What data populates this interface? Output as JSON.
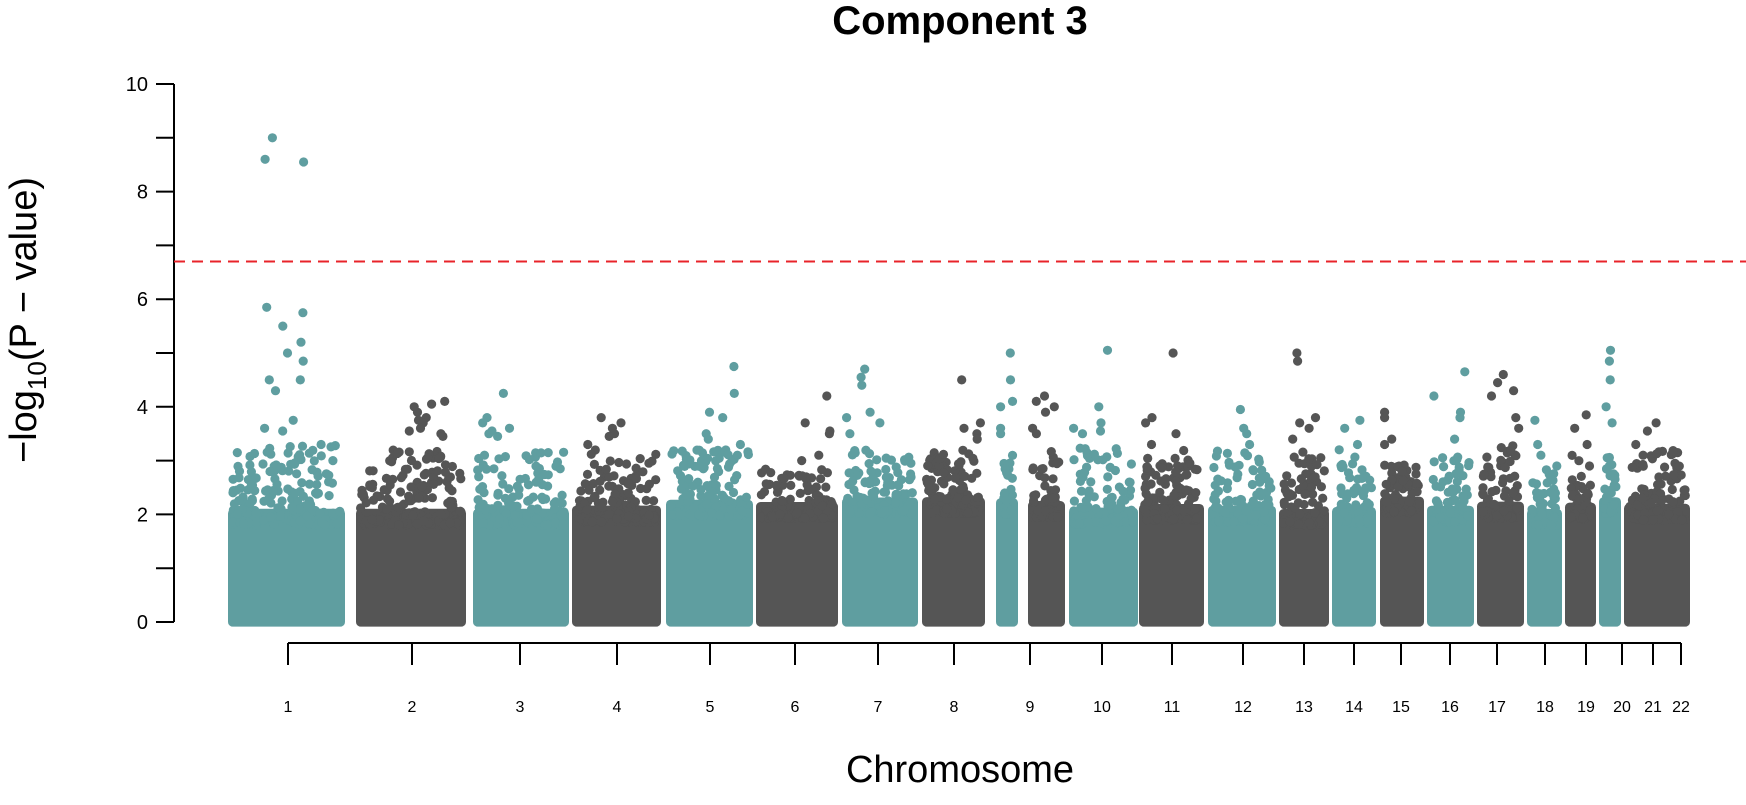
{
  "chart_data": {
    "type": "scatter",
    "subtype": "manhattan",
    "title": "Component 3",
    "xlabel": "Chromosome",
    "ylabel": {
      "prefix": "−log",
      "subscript": "10",
      "suffix": "(P − value)"
    },
    "ylim": [
      0,
      10
    ],
    "yticks": [
      "0",
      "2",
      "4",
      "6",
      "8",
      "10"
    ],
    "threshold": 6.7,
    "grid": false,
    "legend": "none",
    "colors": {
      "teal": "#5f9ea0",
      "dark": "#555555",
      "threshold": "#e8232a",
      "axis": "#000000"
    },
    "chromosomes": [
      {
        "label": "1",
        "color": "teal",
        "base_max": 3.0,
        "peaks": [
          9.0,
          8.6,
          8.55,
          5.85,
          5.75,
          5.5,
          5.2,
          5.0,
          4.85,
          4.5,
          4.3,
          3.75,
          3.6,
          3.55,
          4.5
        ]
      },
      {
        "label": "2",
        "color": "dark",
        "base_max": 2.9,
        "peaks": [
          4.1,
          4.05,
          4.0,
          3.9,
          3.8,
          3.75,
          3.7,
          3.6,
          3.55,
          3.5,
          3.45
        ]
      },
      {
        "label": "3",
        "color": "teal",
        "base_max": 2.9,
        "peaks": [
          4.25,
          3.8,
          3.7,
          3.6,
          3.55,
          3.5,
          3.45
        ]
      },
      {
        "label": "4",
        "color": "dark",
        "base_max": 2.9,
        "peaks": [
          3.8,
          3.7,
          3.6,
          3.5,
          3.45,
          3.3
        ]
      },
      {
        "label": "5",
        "color": "teal",
        "base_max": 2.9,
        "peaks": [
          4.75,
          4.25,
          3.9,
          3.8,
          3.5,
          3.4,
          3.3
        ]
      },
      {
        "label": "6",
        "color": "dark",
        "base_max": 2.6,
        "peaks": [
          4.2,
          3.7,
          3.55,
          3.5,
          3.1,
          3.0
        ]
      },
      {
        "label": "7",
        "color": "teal",
        "base_max": 2.9,
        "peaks": [
          4.7,
          4.55,
          4.4,
          3.9,
          3.8,
          3.7,
          3.5
        ]
      },
      {
        "label": "8",
        "color": "dark",
        "base_max": 2.9,
        "peaks": [
          4.5,
          3.7,
          3.6,
          3.5,
          3.4
        ]
      },
      {
        "label": "9",
        "color": "teal",
        "base_max": 2.8,
        "peaks": [
          5.0,
          4.5,
          4.1,
          4.0,
          3.6,
          3.5
        ]
      },
      {
        "label": "10",
        "color": "dark",
        "base_max": 2.9,
        "peaks": [
          4.2,
          4.1,
          4.0,
          3.9,
          3.6,
          3.5
        ]
      },
      {
        "label": "11",
        "color": "teal",
        "base_max": 3.0,
        "peaks": [
          5.05,
          4.0,
          3.7,
          3.6,
          3.55,
          3.5
        ]
      },
      {
        "label": "12",
        "color": "dark",
        "base_max": 2.9,
        "peaks": [
          5.0,
          3.8,
          3.7,
          3.5,
          3.3
        ]
      },
      {
        "label": "13",
        "color": "teal",
        "base_max": 2.9,
        "peaks": [
          3.95,
          3.6,
          3.5,
          3.3
        ]
      },
      {
        "label": "14",
        "color": "dark",
        "base_max": 2.9,
        "peaks": [
          5.0,
          4.85,
          3.8,
          3.7,
          3.6,
          3.4
        ]
      },
      {
        "label": "15",
        "color": "teal",
        "base_max": 2.8,
        "peaks": [
          3.75,
          3.6,
          3.3,
          3.2
        ]
      },
      {
        "label": "16",
        "color": "dark",
        "base_max": 2.7,
        "peaks": [
          3.9,
          3.8,
          3.4,
          3.3
        ]
      },
      {
        "label": "17",
        "color": "teal",
        "base_max": 2.8,
        "peaks": [
          4.65,
          4.2,
          3.9,
          3.8,
          3.4
        ]
      },
      {
        "label": "18",
        "color": "dark",
        "base_max": 3.0,
        "peaks": [
          4.6,
          4.45,
          4.3,
          4.2,
          3.8,
          3.6
        ]
      },
      {
        "label": "19",
        "color": "teal",
        "base_max": 2.6,
        "peaks": [
          3.75,
          3.3,
          3.1
        ]
      },
      {
        "label": "20",
        "color": "dark",
        "base_max": 2.8,
        "peaks": [
          3.85,
          3.6,
          3.3
        ]
      },
      {
        "label": "21",
        "color": "teal",
        "base_max": 2.8,
        "peaks": [
          5.05,
          4.85,
          4.5,
          4.0,
          3.7
        ]
      },
      {
        "label": "22",
        "color": "dark",
        "base_max": 2.9,
        "peaks": [
          3.7,
          3.55,
          3.3
        ]
      }
    ]
  }
}
